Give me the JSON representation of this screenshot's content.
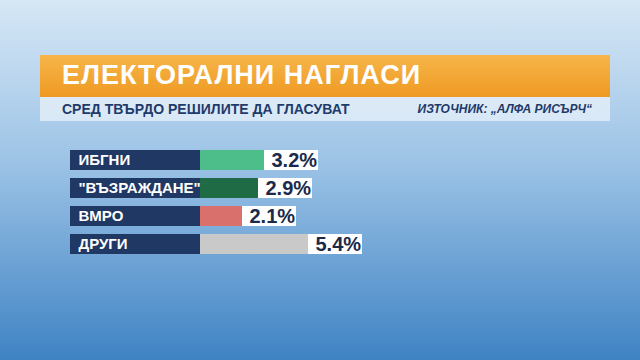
{
  "chart_data": {
    "type": "bar",
    "orientation": "horizontal",
    "title": "ЕЛЕКТОРАЛНИ НАГЛАСИ",
    "subtitle": "СРЕД ТВЪРДО РЕШИЛИТЕ ДА ГЛАСУВАТ",
    "source": "ИЗТОЧНИК: „АЛФА РИСЪРЧ“",
    "categories": [
      "ИБГНИ",
      "\"ВЪЗРАЖДАНЕ\"",
      "ВМРО",
      "ДРУГИ"
    ],
    "values": [
      3.2,
      2.9,
      2.1,
      5.4
    ],
    "value_labels": [
      "3.2%",
      "2.9%",
      "2.1%",
      "5.4%"
    ],
    "colors": [
      "#4dbd8a",
      "#1f6b45",
      "#d9706c",
      "#c9c9c9"
    ],
    "xlim": [
      0,
      10
    ],
    "data_labels": true,
    "tick_labels": "y"
  }
}
